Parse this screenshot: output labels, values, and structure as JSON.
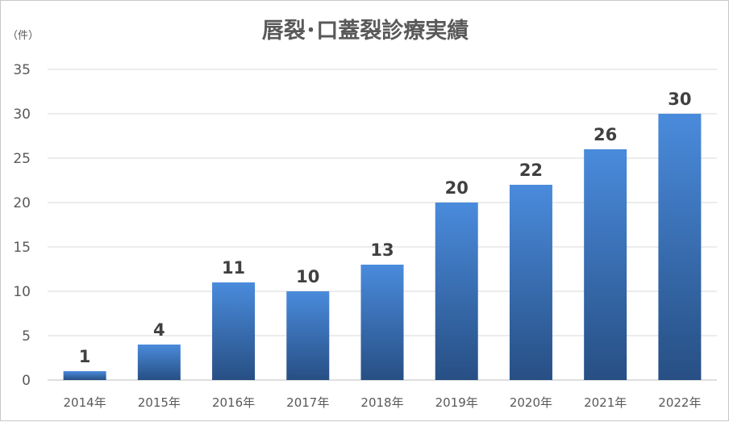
{
  "chart_data": {
    "type": "bar",
    "title": "唇裂･口蓋裂診療実績",
    "unit": "（件）",
    "xlabel": "",
    "ylabel": "",
    "categories": [
      "2014年",
      "2015年",
      "2016年",
      "2017年",
      "2018年",
      "2019年",
      "2020年",
      "2021年",
      "2022年"
    ],
    "values": [
      1,
      4,
      11,
      10,
      13,
      20,
      22,
      26,
      30
    ],
    "ylim": [
      0,
      35
    ],
    "yticks": [
      "0",
      "5",
      "10",
      "15",
      "20",
      "25",
      "30",
      "35"
    ],
    "data_labels": [
      "1",
      "4",
      "11",
      "10",
      "13",
      "20",
      "22",
      "26",
      "30"
    ],
    "grid": true,
    "legend": "none",
    "bar_color_top": "#4a8bdc",
    "bar_color_bottom": "#274f84"
  }
}
